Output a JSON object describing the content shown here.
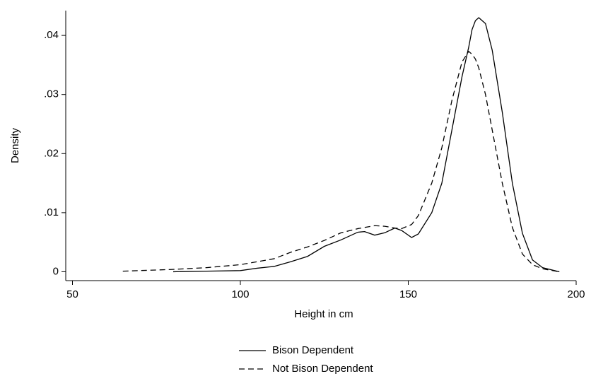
{
  "chart_data": {
    "type": "line",
    "xlabel": "Height in cm",
    "ylabel": "Density",
    "x": [
      65,
      70,
      80,
      90,
      100,
      105,
      110,
      115,
      120,
      125,
      130,
      135,
      137,
      140,
      143,
      146,
      148,
      151,
      153,
      157,
      160,
      163,
      166,
      168,
      169,
      170,
      171,
      173,
      175,
      178,
      181,
      184,
      187,
      190,
      195
    ],
    "series": [
      {
        "name": "Bison Dependent",
        "color": "#000000",
        "line_style": "solid",
        "values": [
          null,
          null,
          0.0,
          0.0001,
          0.0002,
          0.0006,
          0.0009,
          0.0017,
          0.0026,
          0.0043,
          0.0054,
          0.0067,
          0.0068,
          0.0062,
          0.0066,
          0.0074,
          0.007,
          0.0058,
          0.0064,
          0.01,
          0.015,
          0.024,
          0.033,
          0.038,
          0.041,
          0.0425,
          0.043,
          0.042,
          0.0375,
          0.027,
          0.015,
          0.0065,
          0.002,
          0.0007,
          0.0
        ]
      },
      {
        "name": "Not Bison Dependent",
        "color": "#000000",
        "line_style": "dashed",
        "values": [
          0.0001,
          0.0002,
          0.0004,
          0.0007,
          0.0012,
          0.0017,
          0.0022,
          0.0033,
          0.0042,
          0.0053,
          0.0066,
          0.0073,
          0.0075,
          0.0078,
          0.0077,
          0.0074,
          0.0073,
          0.008,
          0.0095,
          0.015,
          0.021,
          0.029,
          0.0355,
          0.0373,
          0.0368,
          0.036,
          0.0345,
          0.03,
          0.024,
          0.015,
          0.0075,
          0.003,
          0.0012,
          0.0005,
          0.0
        ]
      }
    ],
    "xlim": [
      48,
      200
    ],
    "ylim": [
      -0.0015,
      0.0442
    ],
    "xticks": [
      50,
      100,
      150,
      200
    ],
    "yticks": [
      0,
      {
        "value": 0.01,
        "label": ".01"
      },
      {
        "value": 0.02,
        "label": ".02"
      },
      {
        "value": 0.03,
        "label": ".03"
      },
      {
        "value": 0.04,
        "label": ".04"
      }
    ],
    "grid": false,
    "legend": "bottom"
  }
}
